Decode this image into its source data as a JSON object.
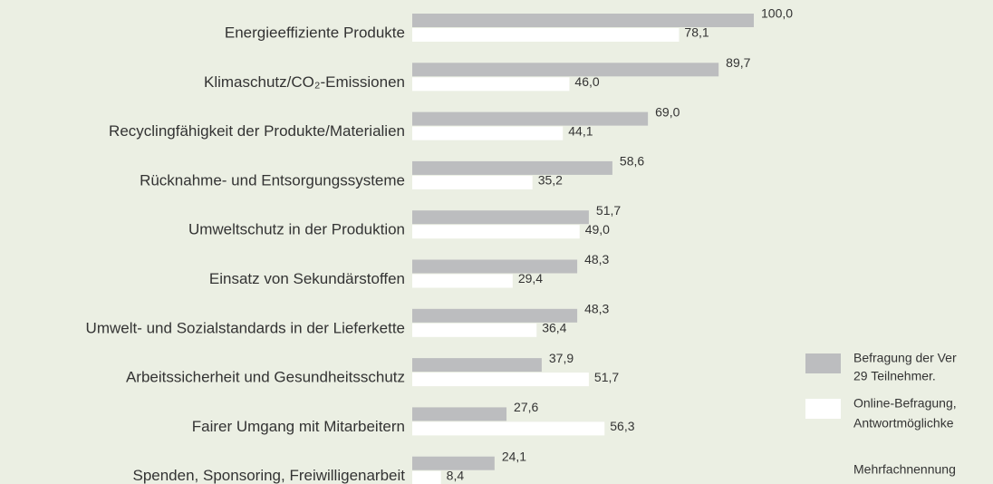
{
  "chart_data": {
    "type": "bar",
    "orientation": "horizontal",
    "categories": [
      "Energieeffiziente Produkte",
      "Klimaschutz/CO₂-Emissionen",
      "Recyclingfähigkeit der Produkte/Materialien",
      "Rücknahme- und Entsorgungssysteme",
      "Umweltschutz in der Produktion",
      "Einsatz von Sekundärstoffen",
      "Umwelt- und Sozialstandards in der Lieferkette",
      "Arbeitssicherheit und Gesundheitsschutz",
      "Fairer Umgang mit Mitarbeitern",
      "Spenden, Sponsoring, Freiwilligenarbeit"
    ],
    "series": [
      {
        "name": "Befragung der Ver",
        "color": "#bcbdbf",
        "values": [
          100,
          89.7,
          69,
          58.6,
          51.7,
          48.3,
          48.3,
          37.9,
          27.6,
          24.1
        ],
        "value_labels": [
          "100,0",
          "89,7",
          "69,0",
          "58,6",
          "51,7",
          "48,3",
          "48,3",
          "37,9",
          "27,6",
          "24,1"
        ]
      },
      {
        "name": "Online-Befragung,",
        "color": "#ffffff",
        "values": [
          78.1,
          46,
          44.1,
          35.2,
          49,
          29.4,
          36.4,
          51.7,
          56.3,
          8.4
        ],
        "value_labels": [
          "78,1",
          "46,0",
          "44,1",
          "35,2",
          "49,0",
          "29,4",
          "36,4",
          "51,7",
          "56,3",
          "8,4"
        ]
      }
    ],
    "legend_extra": [
      "29 Teilnehmer.",
      "Antwortmöglichke"
    ],
    "footnote": "Mehrfachnennung",
    "xlim": [
      0,
      100
    ]
  }
}
